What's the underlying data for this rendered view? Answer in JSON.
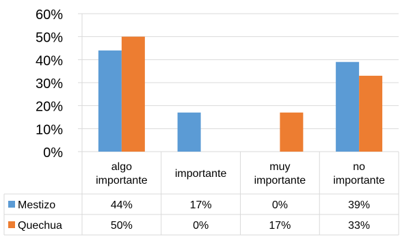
{
  "chart_data": {
    "type": "bar",
    "title": "",
    "xlabel": "",
    "ylabel": "",
    "ylim": [
      0,
      60
    ],
    "y_ticks": [
      "0%",
      "10%",
      "20%",
      "30%",
      "40%",
      "50%",
      "60%"
    ],
    "grid": true,
    "categories": [
      [
        "algo",
        "importante"
      ],
      [
        "importante"
      ],
      [
        "muy",
        "importante"
      ],
      [
        "no",
        "importante"
      ]
    ],
    "series": [
      {
        "name": "Mestizo",
        "color": "#5B9BD5",
        "values": [
          44,
          17,
          0,
          39
        ],
        "labels": [
          "44%",
          "17%",
          "0%",
          "39%"
        ]
      },
      {
        "name": "Quechua",
        "color": "#ED7D31",
        "values": [
          50,
          0,
          17,
          33
        ],
        "labels": [
          "50%",
          "0%",
          "17%",
          "33%"
        ]
      }
    ],
    "legend": "data-table"
  }
}
